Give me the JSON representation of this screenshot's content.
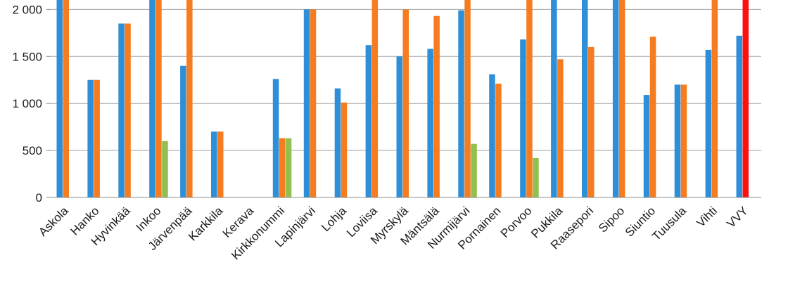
{
  "chart_data": {
    "type": "bar",
    "categories": [
      "Askola",
      "Hanko",
      "Hyvinkää",
      "Inkoo",
      "Järvenpää",
      "Karkkila",
      "Kerava",
      "Kirkkonummi",
      "Lapinjärvi",
      "Lohja",
      "Loviisa",
      "Myrskylä",
      "Mäntsälä",
      "Nurmijärvi",
      "Pornainen",
      "Porvoo",
      "Pukkila",
      "Raasepori",
      "Sipoo",
      "Siuntio",
      "Tuusula",
      "Vihti",
      "VVY"
    ],
    "series": [
      {
        "color": "#2e8fd8",
        "values": [
          2100,
          1250,
          1850,
          2100,
          1400,
          700,
          null,
          1260,
          2000,
          1160,
          1620,
          1500,
          1580,
          1990,
          1310,
          1680,
          2100,
          2100,
          2100,
          1090,
          1200,
          1570,
          1720
        ]
      },
      {
        "color": "#f57c1f",
        "values": [
          2100,
          1250,
          1850,
          2100,
          2100,
          700,
          null,
          630,
          2000,
          1010,
          2100,
          2000,
          1930,
          2100,
          1210,
          2100,
          1470,
          1600,
          2100,
          1710,
          1200,
          2100,
          2100
        ]
      },
      {
        "color": "#92c050",
        "values": [
          null,
          null,
          null,
          600,
          null,
          null,
          null,
          630,
          null,
          null,
          null,
          null,
          null,
          570,
          null,
          420,
          null,
          null,
          null,
          null,
          null,
          null,
          null
        ]
      }
    ],
    "special_bar": {
      "category": "VVY",
      "series_index": 1,
      "color": "#ff1010"
    },
    "yticks": [
      0,
      500,
      1000,
      1500,
      2000
    ],
    "ytick_labels": [
      "0",
      "500",
      "1 000",
      "1 500",
      "2 000"
    ],
    "ylim": [
      0,
      2100
    ],
    "grid": true,
    "title": "",
    "xlabel": "",
    "ylabel": ""
  }
}
